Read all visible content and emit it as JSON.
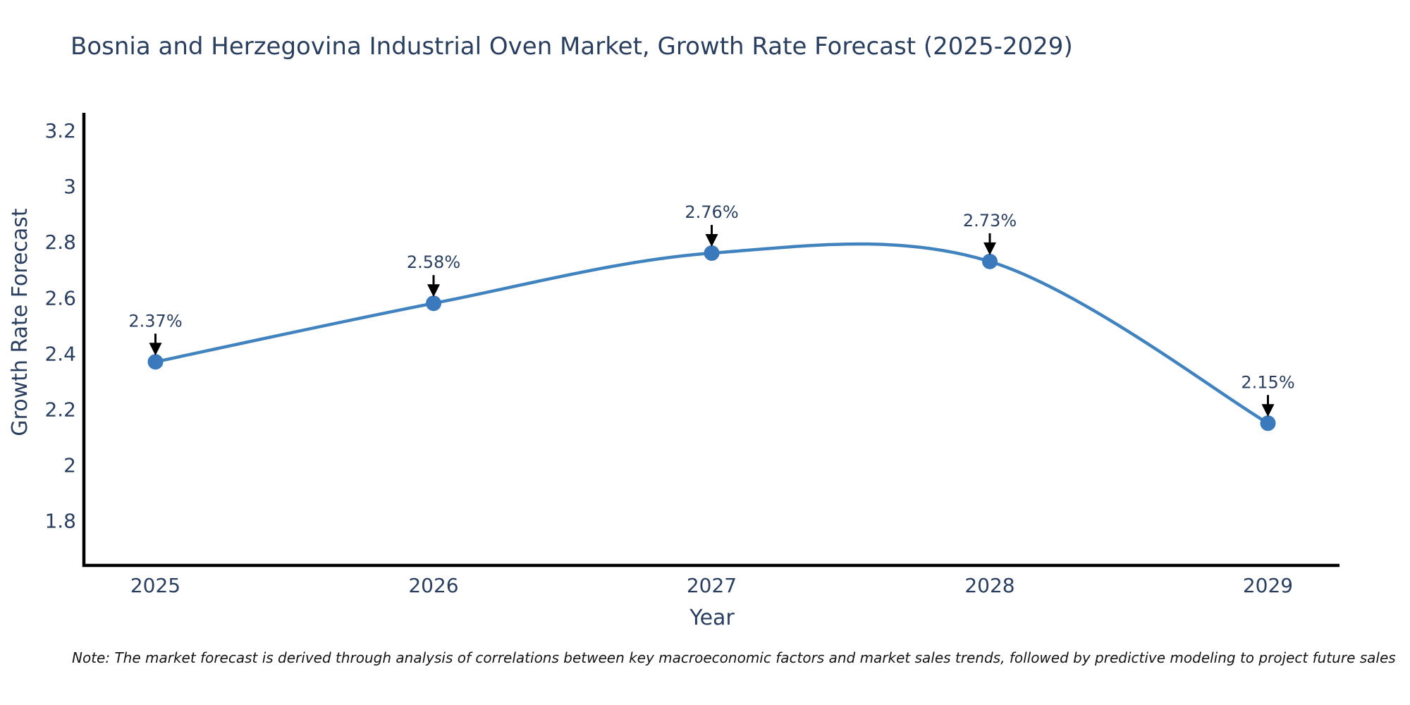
{
  "chart_data": {
    "type": "line",
    "title": "Bosnia and Herzegovina Industrial Oven Market, Growth Rate Forecast (2025-2029)",
    "xlabel": "Year",
    "ylabel": "Growth Rate Forecast",
    "categories": [
      "2025",
      "2026",
      "2027",
      "2028",
      "2029"
    ],
    "series": [
      {
        "name": "Growth Rate Forecast",
        "values": [
          2.37,
          2.58,
          2.76,
          2.73,
          2.15
        ],
        "point_labels": [
          "2.37%",
          "2.58%",
          "2.76%",
          "2.73%",
          "2.15%"
        ]
      }
    ],
    "ytick_values": [
      3.2,
      3,
      2.8,
      2.6,
      2.4,
      2.2,
      2,
      1.8
    ],
    "ytick_labels": [
      "3.2",
      "3",
      "2.8",
      "2.6",
      "2.4",
      "2.2",
      "2",
      "1.8"
    ],
    "ylim": [
      1.64,
      3.26
    ],
    "line_shape": "spline",
    "grid": false,
    "legend": "none",
    "markers": "circle",
    "annotation_arrows": true,
    "colors": {
      "line": "#4183be",
      "marker": "#3a7abc",
      "axis": "#000000",
      "text": "#2a3f5f",
      "arrow": "#000000",
      "background": "#ffffff"
    },
    "note": "Note: The market forecast is derived through analysis of correlations between key macroeconomic factors and market sales trends, followed by predictive modeling to project future sales"
  }
}
